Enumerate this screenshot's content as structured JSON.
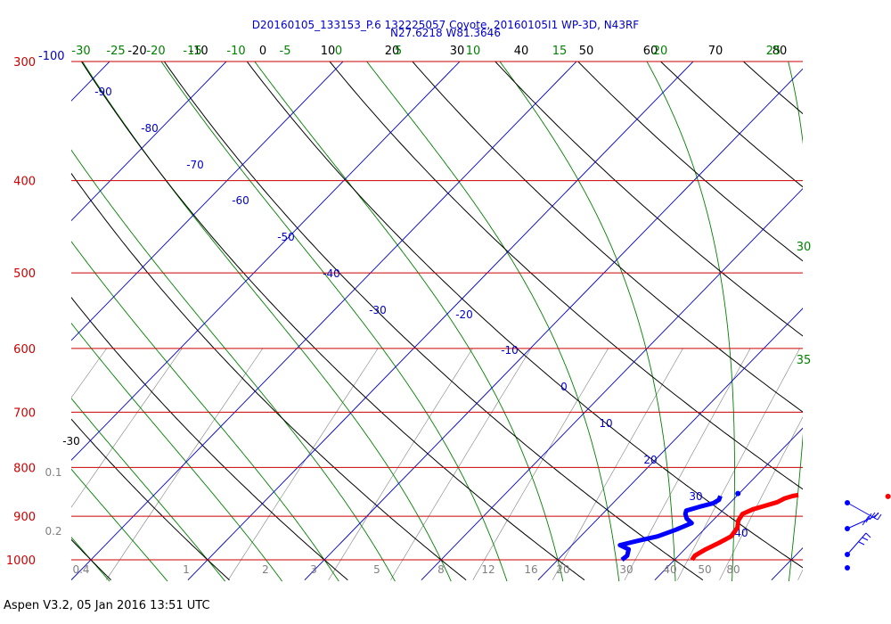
{
  "header": {
    "title_line1": "D20160105_133153_P.6 132225057 Coyote, 20160105I1 WP-3D, N43RF",
    "title_line2": "N27.6218 W81.3646"
  },
  "footer": {
    "text": "Aspen V3.2, 05 Jan 2016  13:51 UTC"
  },
  "colors": {
    "temperature": "#ff0000",
    "dewpoint": "#0000ff",
    "isobar": "#cc0000",
    "isotherm": "#0000cc",
    "dry_adiabat": "#000000",
    "moist_adiabat": "#008000",
    "mixing_ratio": "#808080"
  },
  "chart_data": {
    "type": "skew-t",
    "pressure_levels": [
      "300",
      "400",
      "500",
      "600",
      "700",
      "800",
      "900",
      "1000"
    ],
    "corner_label": "-100",
    "isotherm_labels": [
      "-90",
      "-80",
      "-70",
      "-60",
      "-50",
      "-40",
      "-30",
      "-20",
      "-10",
      "0",
      "10",
      "20",
      "30",
      "40"
    ],
    "dry_adiabat_top_labels": [
      "-20",
      "-10",
      "0",
      "10",
      "20",
      "30",
      "40",
      "50",
      "60",
      "70",
      "80"
    ],
    "dry_adiabat_left_label": "-30",
    "moist_adiabat_top_labels": [
      "-30",
      "-25",
      "-20",
      "-15",
      "-10",
      "-5",
      "0",
      "5",
      "10",
      "15",
      "20",
      "25"
    ],
    "moist_adiabat_right_labels": [
      "30",
      "35"
    ],
    "mixing_ratio_left_labels": [
      "0.1",
      "0.2"
    ],
    "mixing_ratio_bottom_labels": [
      "0.4",
      "1",
      "2",
      "3",
      "5",
      "8",
      "12",
      "16",
      "20",
      "30",
      "40",
      "50",
      "80"
    ],
    "temperature_profile": [
      {
        "p": 1000,
        "t": 21.5
      },
      {
        "p": 990,
        "t": 21.4
      },
      {
        "p": 975,
        "t": 21.8
      },
      {
        "p": 960,
        "t": 22.4
      },
      {
        "p": 945,
        "t": 22.9
      },
      {
        "p": 925,
        "t": 22.7
      },
      {
        "p": 910,
        "t": 22.2
      },
      {
        "p": 895,
        "t": 22.0
      },
      {
        "p": 885,
        "t": 22.5
      },
      {
        "p": 878,
        "t": 23.2
      },
      {
        "p": 870,
        "t": 24.0
      },
      {
        "p": 862,
        "t": 24.3
      },
      {
        "p": 857,
        "t": 24.8
      },
      {
        "p": 855,
        "t": 25.2
      }
    ],
    "temperature_outlier": {
      "p": 858,
      "t": 33.0
    },
    "dewpoint_profile": [
      {
        "p": 1000,
        "td": 15.5
      },
      {
        "p": 990,
        "td": 15.6
      },
      {
        "p": 975,
        "td": 15.2
      },
      {
        "p": 965,
        "td": 14.1
      },
      {
        "p": 955,
        "td": 15.3
      },
      {
        "p": 945,
        "td": 16.6
      },
      {
        "p": 930,
        "td": 17.6
      },
      {
        "p": 915,
        "td": 18.4
      },
      {
        "p": 905,
        "td": 17.6
      },
      {
        "p": 895,
        "td": 17.1
      },
      {
        "p": 888,
        "td": 16.9
      },
      {
        "p": 880,
        "td": 17.7
      },
      {
        "p": 872,
        "td": 18.6
      },
      {
        "p": 865,
        "td": 18.8
      },
      {
        "p": 857,
        "td": 18.6
      }
    ],
    "dewpoint_outlier": {
      "p": 852,
      "td": 19.9
    },
    "wind_barbs": [
      {
        "p": 870
      },
      {
        "p": 915
      },
      {
        "p": 960
      },
      {
        "p": 995
      }
    ]
  }
}
